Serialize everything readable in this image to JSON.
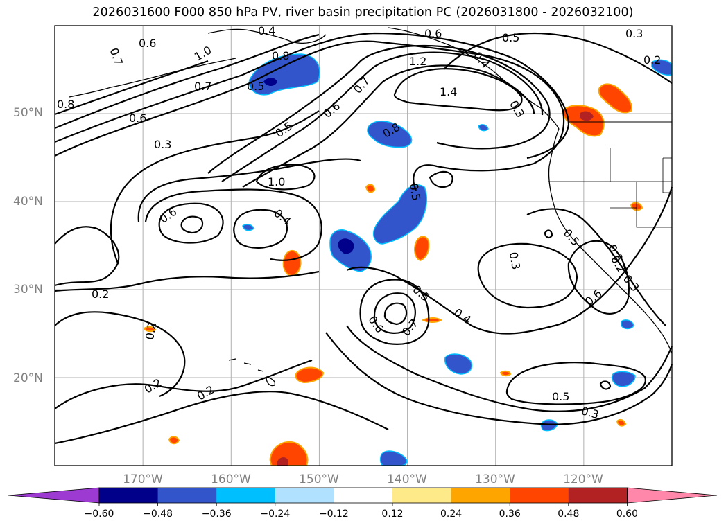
{
  "title": "2026031600 F000 850 hPa PV, river basin precipitation PC (2026031800 - 2026032100)",
  "map": {
    "lat_range_deg": [
      10,
      60
    ],
    "lon_range_deg": [
      -180,
      -110
    ],
    "lat_labels": [
      "50°N",
      "40°N",
      "30°N",
      "20°N"
    ],
    "lon_labels": [
      "170°W",
      "160°W",
      "150°W",
      "140°W",
      "130°W",
      "120°W"
    ],
    "contour_labels": [
      "0.4",
      "0.6",
      "0.7",
      "0.6",
      "0.8",
      "1.0",
      "0.7",
      "0.8",
      "0.5",
      "0.6",
      "0.3",
      "0.5",
      "0.6",
      "0.7",
      "1.2",
      "1.4",
      "0.5",
      "0.3",
      "0.2",
      "0.4",
      "0.8",
      "1.0",
      "0.6",
      "0.4",
      "0.2",
      "0.2",
      "0.2",
      "0.2",
      "0.5",
      "0.4",
      "0.6",
      "0.7",
      "0.5",
      "0.3",
      "0.5",
      "0.3",
      "0.5",
      "0.3",
      "0.3",
      "0.6",
      "0.3",
      "0.2"
    ],
    "colors": {
      "gridline": "#b0b0b0",
      "contour": "#000000",
      "coast": "#000000"
    }
  },
  "colorbar": {
    "ticks": [
      "−0.60",
      "−0.48",
      "−0.36",
      "−0.24",
      "−0.12",
      "0.12",
      "0.24",
      "0.36",
      "0.48",
      "0.60"
    ],
    "colors": [
      "#9c3ad1",
      "#00008b",
      "#3355cc",
      "#00bfff",
      "#b0e2ff",
      "#ffffff",
      "#ffea8a",
      "#ffa500",
      "#ff4500",
      "#b22222",
      "#ff88aa"
    ]
  }
}
